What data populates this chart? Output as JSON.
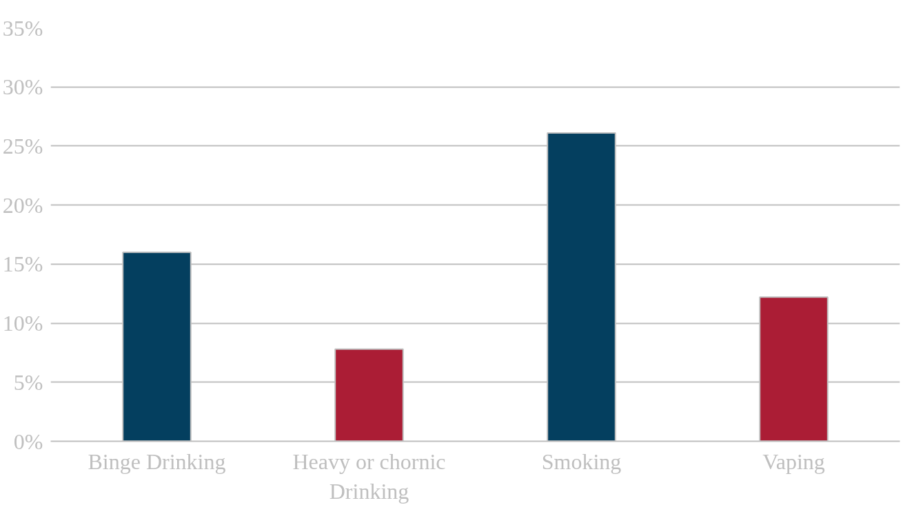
{
  "chart_data": {
    "type": "bar",
    "categories": [
      "Binge Drinking",
      "Heavy or chornic Drinking",
      "Smoking",
      "Vaping"
    ],
    "values": [
      16,
      7.8,
      26.1,
      12.2
    ],
    "colors": [
      "#043f5f",
      "#ab1d35",
      "#043f5f",
      "#ab1d35"
    ],
    "ylim": [
      0,
      35
    ],
    "yticks": [
      {
        "value": 0,
        "label": "0%"
      },
      {
        "value": 5,
        "label": "5%"
      },
      {
        "value": 10,
        "label": "10%"
      },
      {
        "value": 15,
        "label": "15%"
      },
      {
        "value": 20,
        "label": "20%"
      },
      {
        "value": 25,
        "label": "25%"
      },
      {
        "value": 30,
        "label": "30%"
      },
      {
        "value": 35,
        "label": "35%"
      }
    ],
    "grid": "y"
  }
}
